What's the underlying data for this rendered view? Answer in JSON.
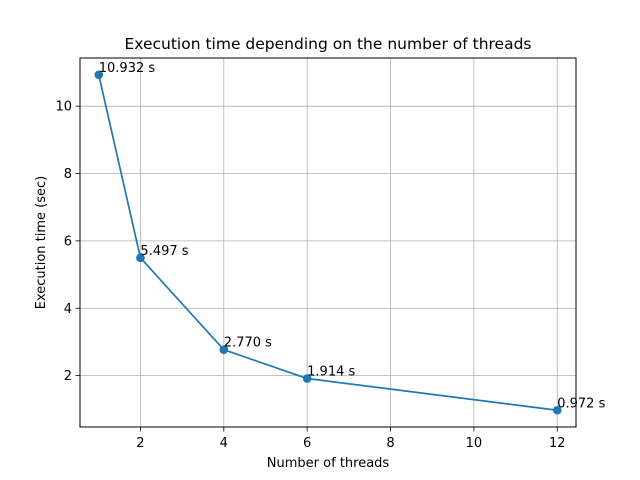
{
  "chart_data": {
    "type": "line",
    "title": "Execution time depending on the number of threads",
    "xlabel": "Number of threads",
    "ylabel": "Execution time (sec)",
    "xlim": [
      0.55,
      12.45
    ],
    "ylim": [
      0.475,
      11.43
    ],
    "x_ticks": [
      2,
      4,
      6,
      8,
      10,
      12
    ],
    "y_ticks": [
      2,
      4,
      6,
      8,
      10
    ],
    "grid": true,
    "series": [
      {
        "x": [
          1,
          2,
          4,
          6,
          12
        ],
        "values": [
          10.932,
          5.497,
          2.77,
          1.914,
          0.972
        ],
        "color": "#1f77b4",
        "marker": "circle"
      }
    ],
    "annotations": [
      "10.932 s",
      "5.497 s",
      "2.770 s",
      "1.914 s",
      "0.972 s"
    ]
  }
}
